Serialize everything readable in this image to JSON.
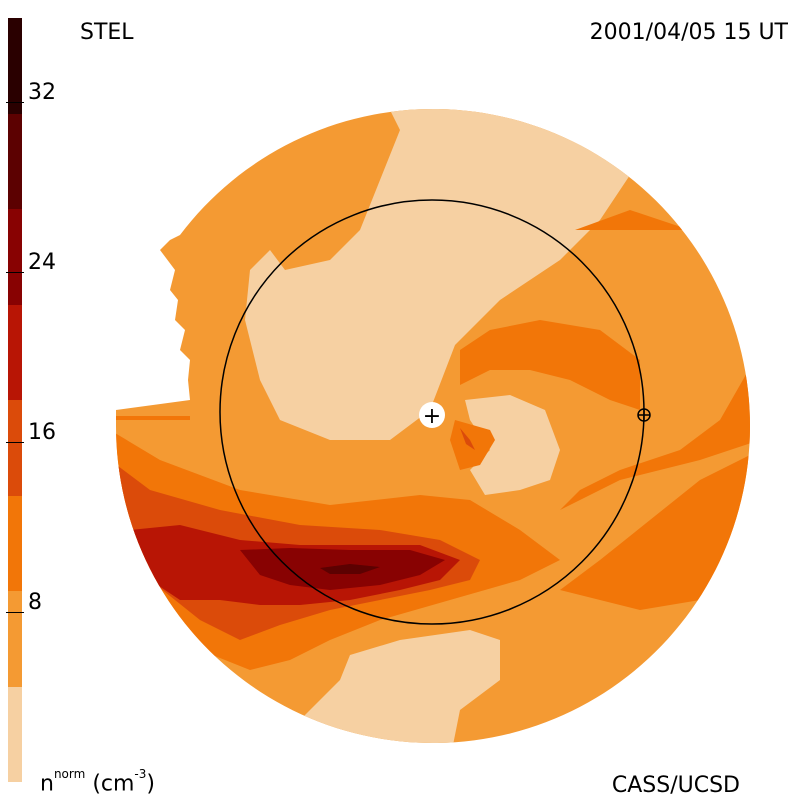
{
  "header": {
    "observatory": "STEL",
    "timestamp": "2001/04/05 15 UT"
  },
  "footer": {
    "unit_main": "n",
    "unit_sup": "norm",
    "unit_rest": "(cm",
    "unit_exp": "-3",
    "unit_close": ")",
    "credit": "CASS/UCSD"
  },
  "colorbar": {
    "ticks": [
      "32",
      "24",
      "16",
      "8"
    ],
    "colors": [
      "#f6d0a2",
      "#f49a33",
      "#f27608",
      "#db4b0a",
      "#b81505",
      "#880202",
      "#5c0101",
      "#2a0000"
    ]
  },
  "map": {
    "earth_marker": "⊕",
    "sun_marker": "+"
  }
}
